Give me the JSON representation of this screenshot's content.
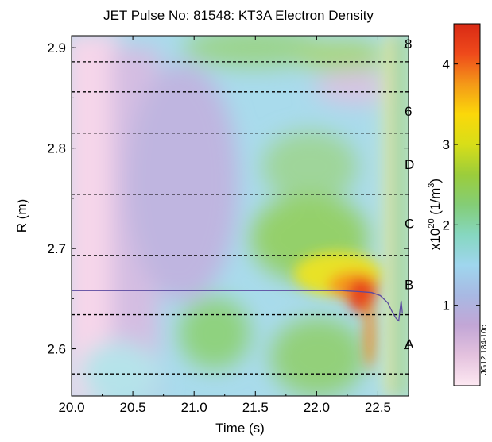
{
  "chart_data": {
    "type": "heatmap",
    "title": "JET Pulse No: 81548: KT3A Electron Density",
    "xlabel": "Time (s)",
    "ylabel": "R (m)",
    "xlim": [
      20.0,
      22.75
    ],
    "ylim": [
      2.553,
      2.912
    ],
    "x_ticks": [
      {
        "value": 20.0,
        "label": "20.0"
      },
      {
        "value": 20.5,
        "label": "20.5"
      },
      {
        "value": 21.0,
        "label": "21.0"
      },
      {
        "value": 21.5,
        "label": "21.5"
      },
      {
        "value": 22.0,
        "label": "22.0"
      },
      {
        "value": 22.5,
        "label": "22.5"
      }
    ],
    "y_ticks": [
      {
        "value": 2.6,
        "label": "2.6"
      },
      {
        "value": 2.7,
        "label": "2.7"
      },
      {
        "value": 2.8,
        "label": "2.8"
      },
      {
        "value": 2.9,
        "label": "2.9"
      }
    ],
    "colorbar": {
      "label_prefix": "x10",
      "label_exp": "20",
      "label_unit_open": " (1/m",
      "label_unit_exp": "3",
      "label_unit_close": ")",
      "range": [
        0,
        4.5
      ],
      "ticks": [
        {
          "value": 1,
          "label": "1"
        },
        {
          "value": 2,
          "label": "2"
        },
        {
          "value": 3,
          "label": "3"
        },
        {
          "value": 4,
          "label": "4"
        }
      ],
      "colors": [
        "#fde8f2",
        "#e4c2de",
        "#c2a6d6",
        "#a8b9e3",
        "#9fd6ee",
        "#86d7c0",
        "#84cd76",
        "#9bcd3b",
        "#d8de18",
        "#fbd80a",
        "#f49918",
        "#ef4a1b",
        "#d92a15"
      ]
    },
    "dashed_lines_r": [
      2.575,
      2.634,
      2.693,
      2.754,
      2.815,
      2.856,
      2.886
    ],
    "regions": [
      {
        "label": "A",
        "r": 2.605
      },
      {
        "label": "B",
        "r": 2.664
      },
      {
        "label": "C",
        "r": 2.725
      },
      {
        "label": "D",
        "r": 2.784
      },
      {
        "label": "6",
        "r": 2.837
      },
      {
        "label": "8",
        "r": 2.904
      }
    ],
    "trace": {
      "color": "#5b4aa0",
      "t": [
        20.0,
        20.5,
        21.0,
        21.5,
        22.0,
        22.2,
        22.35,
        22.45,
        22.52,
        22.58,
        22.62,
        22.65,
        22.67,
        22.69,
        22.7
      ],
      "r": [
        2.658,
        2.658,
        2.658,
        2.658,
        2.658,
        2.658,
        2.657,
        2.656,
        2.653,
        2.646,
        2.636,
        2.63,
        2.628,
        2.648,
        2.635
      ]
    },
    "source_code": "JG12.184-10c"
  }
}
